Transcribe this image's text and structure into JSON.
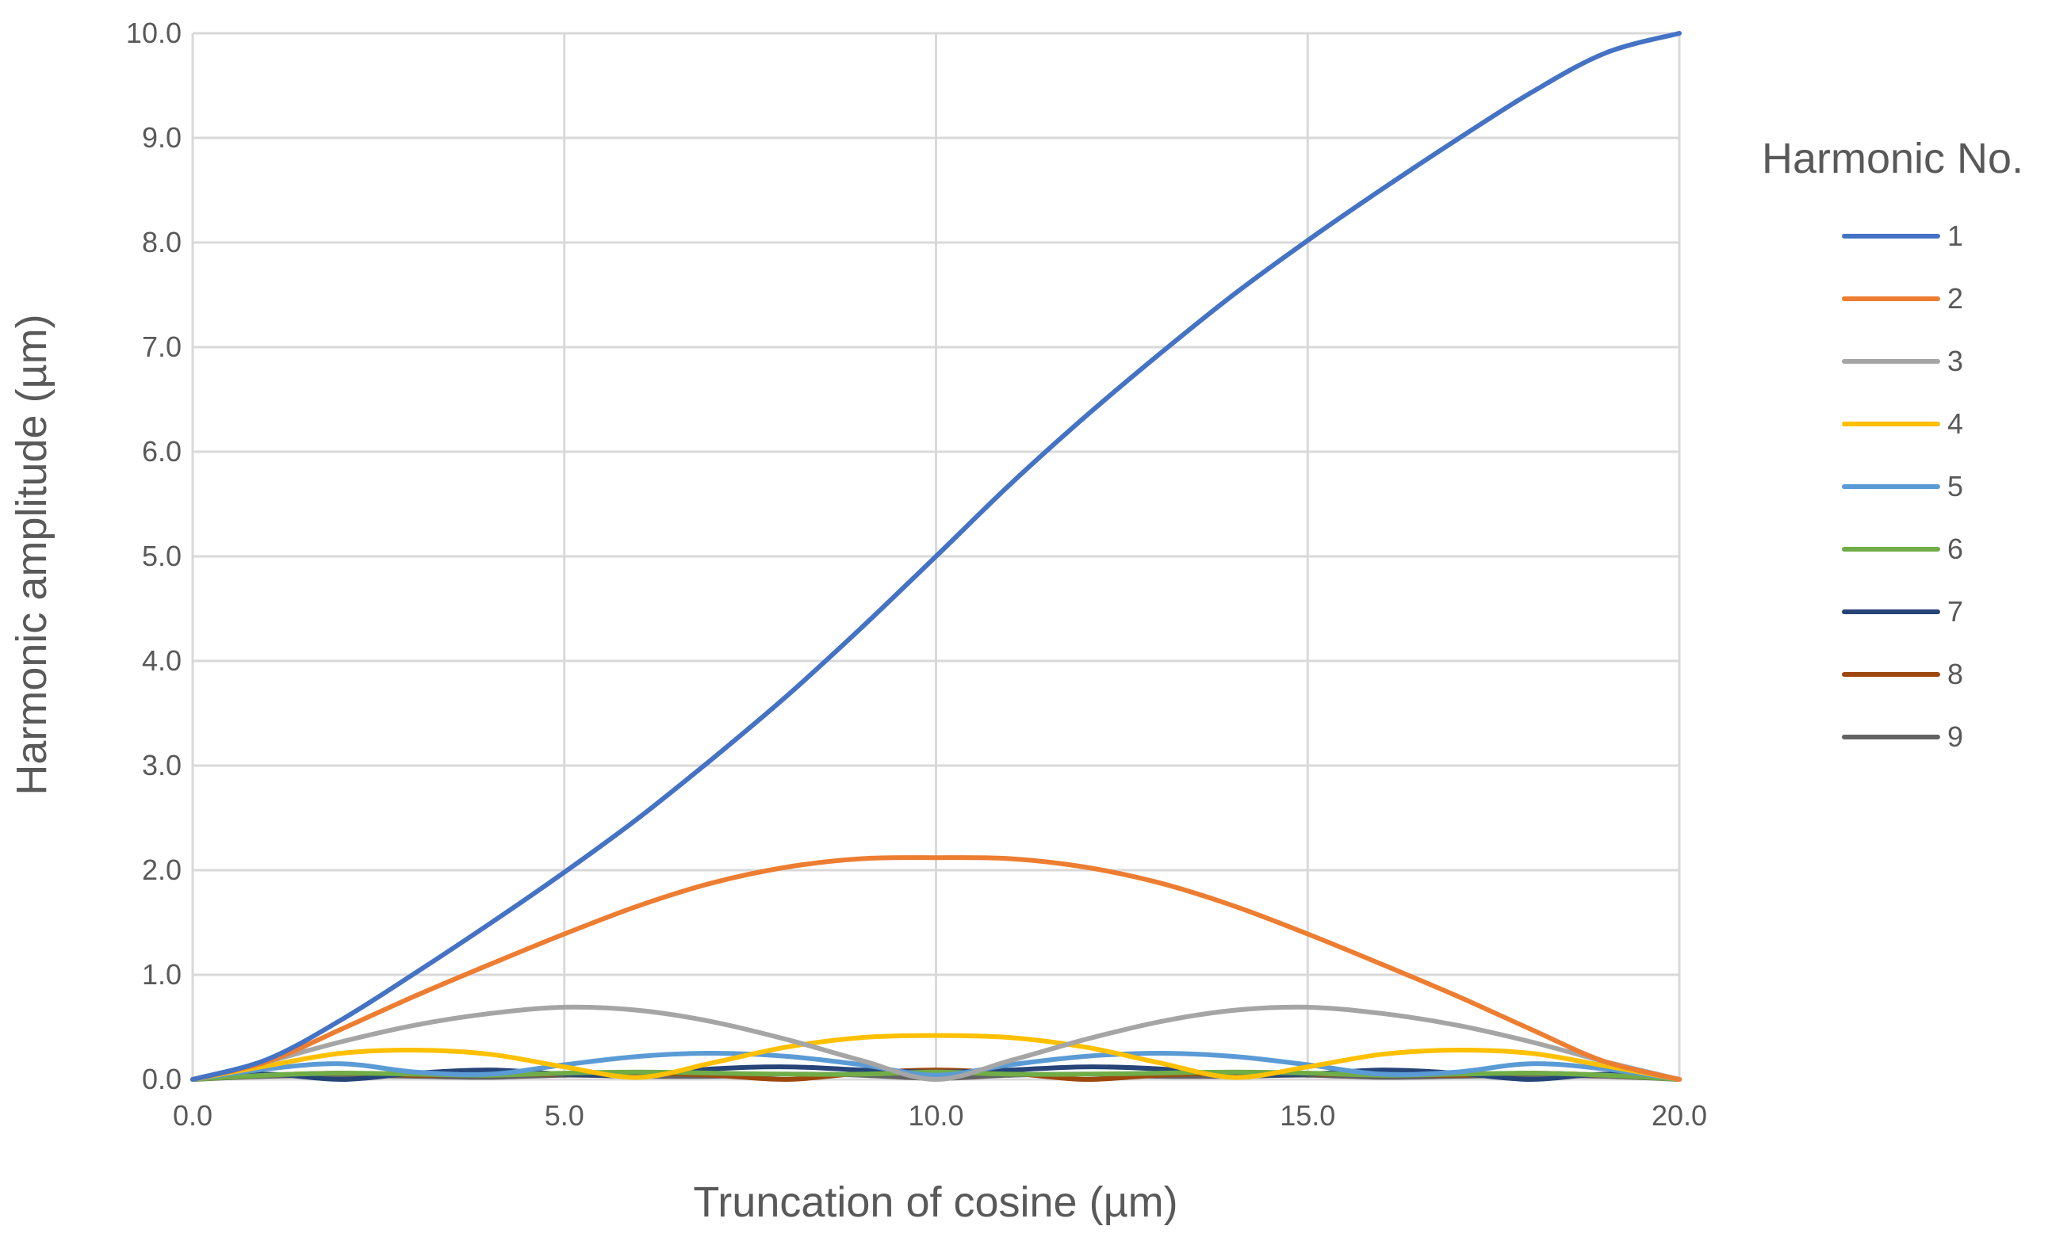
{
  "chart_data": {
    "type": "line",
    "title": "",
    "xlabel": "Truncation of cosine (µm)",
    "ylabel": "Harmonic amplitude (µm)",
    "xlim": [
      0,
      20
    ],
    "ylim": [
      0,
      10
    ],
    "x_ticks": [
      "0.0",
      "5.0",
      "10.0",
      "15.0",
      "20.0"
    ],
    "y_ticks": [
      "0.0",
      "1.0",
      "2.0",
      "3.0",
      "4.0",
      "5.0",
      "6.0",
      "7.0",
      "8.0",
      "9.0",
      "10.0"
    ],
    "grid": true,
    "legend": {
      "title": "Harmonic No.",
      "position": "right"
    },
    "x": [
      0,
      1,
      2,
      3,
      4,
      5,
      6,
      7,
      8,
      9,
      10,
      11,
      12,
      13,
      14,
      15,
      16,
      17,
      18,
      19,
      20
    ],
    "series": [
      {
        "name": "1",
        "color": "#4472C4",
        "values": [
          0.0,
          0.19,
          0.57,
          1.02,
          1.49,
          1.98,
          2.5,
          3.07,
          3.67,
          4.32,
          5.0,
          5.69,
          6.33,
          6.93,
          7.5,
          8.02,
          8.51,
          8.98,
          9.43,
          9.81,
          10.0
        ]
      },
      {
        "name": "2",
        "color": "#ED7D31",
        "values": [
          0.0,
          0.17,
          0.48,
          0.8,
          1.1,
          1.39,
          1.66,
          1.88,
          2.03,
          2.11,
          2.12,
          2.11,
          2.03,
          1.88,
          1.66,
          1.39,
          1.1,
          0.8,
          0.48,
          0.17,
          0.0
        ]
      },
      {
        "name": "3",
        "color": "#A5A5A5",
        "values": [
          0.0,
          0.17,
          0.36,
          0.52,
          0.63,
          0.69,
          0.66,
          0.55,
          0.38,
          0.18,
          0.0,
          0.18,
          0.38,
          0.55,
          0.66,
          0.69,
          0.63,
          0.52,
          0.36,
          0.17,
          0.0
        ]
      },
      {
        "name": "4",
        "color": "#FFC000",
        "values": [
          0.0,
          0.13,
          0.25,
          0.28,
          0.24,
          0.12,
          0.02,
          0.16,
          0.31,
          0.4,
          0.42,
          0.4,
          0.31,
          0.16,
          0.02,
          0.12,
          0.24,
          0.28,
          0.25,
          0.13,
          0.0
        ]
      },
      {
        "name": "5",
        "color": "#5B9BD5",
        "values": [
          0.0,
          0.1,
          0.15,
          0.07,
          0.05,
          0.14,
          0.22,
          0.25,
          0.22,
          0.14,
          0.04,
          0.14,
          0.22,
          0.25,
          0.22,
          0.14,
          0.05,
          0.07,
          0.15,
          0.1,
          0.0
        ]
      },
      {
        "name": "6",
        "color": "#70AD47",
        "values": [
          0.0,
          0.04,
          0.06,
          0.05,
          0.04,
          0.06,
          0.07,
          0.06,
          0.05,
          0.05,
          0.07,
          0.05,
          0.05,
          0.06,
          0.07,
          0.06,
          0.04,
          0.05,
          0.06,
          0.04,
          0.0
        ]
      },
      {
        "name": "7",
        "color": "#264478",
        "values": [
          0.0,
          0.05,
          0.0,
          0.06,
          0.09,
          0.05,
          0.04,
          0.1,
          0.12,
          0.09,
          0.07,
          0.09,
          0.12,
          0.1,
          0.04,
          0.05,
          0.09,
          0.06,
          0.0,
          0.05,
          0.0
        ]
      },
      {
        "name": "8",
        "color": "#9E480E",
        "values": [
          0.0,
          0.04,
          0.06,
          0.04,
          0.05,
          0.05,
          0.06,
          0.04,
          0.0,
          0.06,
          0.09,
          0.06,
          0.0,
          0.04,
          0.06,
          0.05,
          0.05,
          0.04,
          0.06,
          0.04,
          0.0
        ]
      },
      {
        "name": "9",
        "color": "#636363",
        "values": [
          0.0,
          0.03,
          0.04,
          0.03,
          0.02,
          0.04,
          0.03,
          0.03,
          0.05,
          0.04,
          0.01,
          0.04,
          0.05,
          0.03,
          0.03,
          0.04,
          0.02,
          0.03,
          0.04,
          0.03,
          0.0
        ]
      }
    ]
  }
}
